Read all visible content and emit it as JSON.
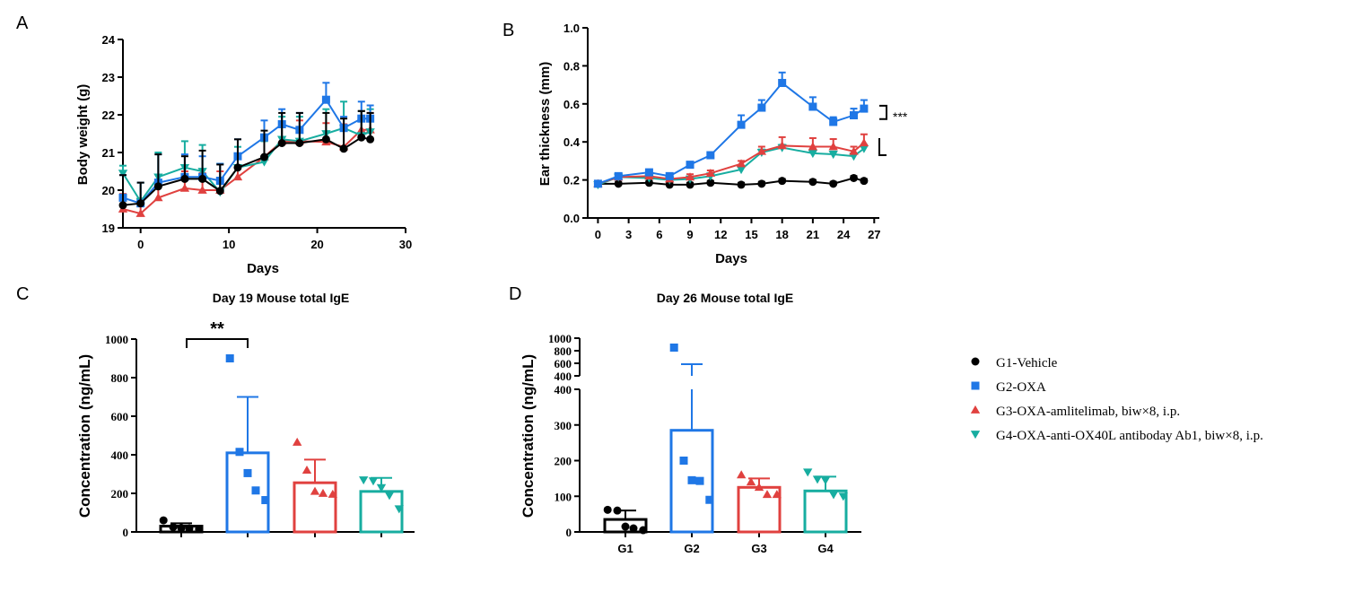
{
  "panels": {
    "a": "A",
    "b": "B",
    "c": "C",
    "d": "D"
  },
  "colors": {
    "G1": "#000000",
    "G2": "#1f77e6",
    "G3": "#e0413f",
    "G4": "#17ada0"
  },
  "legend": [
    {
      "label": "G1-Vehicle",
      "marker": "circle",
      "color": "#000000"
    },
    {
      "label": "G2-OXA",
      "marker": "square",
      "color": "#1f77e6"
    },
    {
      "label": "G3-OXA-amlitelimab, biw×8, i.p.",
      "marker": "triangle-up",
      "color": "#e0413f"
    },
    {
      "label": "G4-OXA-anti-OX40L antiboday Ab1, biw×8, i.p.",
      "marker": "triangle-down",
      "color": "#17ada0"
    }
  ],
  "chart_data": [
    {
      "id": "A",
      "type": "line",
      "title": "",
      "xlabel": "Days",
      "ylabel": "Body weight (g)",
      "xlim": [
        -2,
        30
      ],
      "ylim": [
        19,
        24
      ],
      "xticks": [
        "0",
        "10",
        "20",
        "30"
      ],
      "yticks": [
        "19",
        "20",
        "21",
        "22",
        "23",
        "24"
      ],
      "x": [
        -2,
        0,
        2,
        5,
        7,
        9,
        11,
        14,
        16,
        18,
        21,
        23,
        25,
        26
      ],
      "series": [
        {
          "group": "G1",
          "marker": "circle",
          "values": [
            19.6,
            19.65,
            20.1,
            20.3,
            20.3,
            19.98,
            20.6,
            20.88,
            21.25,
            21.25,
            21.35,
            21.1,
            21.4,
            21.35
          ],
          "err": [
            0.8,
            0.55,
            0.85,
            0.6,
            0.75,
            0.7,
            0.75,
            0.7,
            0.8,
            0.8,
            0.7,
            0.8,
            0.7,
            0.7
          ]
        },
        {
          "group": "G2",
          "marker": "square",
          "values": [
            19.8,
            19.65,
            20.2,
            20.35,
            20.35,
            20.25,
            20.9,
            21.4,
            21.75,
            21.6,
            22.4,
            21.65,
            21.9,
            21.9
          ],
          "err": [
            0.6,
            0.55,
            0.75,
            0.6,
            0.55,
            0.45,
            0.45,
            0.45,
            0.4,
            0.45,
            0.45,
            0.3,
            0.45,
            0.35
          ]
        },
        {
          "group": "G3",
          "marker": "triangle-up",
          "values": [
            19.5,
            19.38,
            19.8,
            20.05,
            20.0,
            20.0,
            20.35,
            20.88,
            21.3,
            21.3,
            21.28,
            21.15,
            21.6,
            21.6
          ],
          "err": [
            0.4,
            0.4,
            0.45,
            0.45,
            0.45,
            0.5,
            0.5,
            0.55,
            0.45,
            0.55,
            0.5,
            0.6,
            0.5,
            0.45
          ]
        },
        {
          "group": "G4",
          "marker": "triangle-down",
          "values": [
            20.45,
            19.7,
            20.35,
            20.6,
            20.5,
            19.95,
            20.6,
            20.75,
            21.35,
            21.3,
            21.5,
            21.65,
            21.45,
            21.55
          ],
          "err": [
            0.2,
            0.5,
            0.65,
            0.7,
            0.7,
            0.75,
            0.55,
            0.55,
            0.6,
            0.65,
            0.65,
            0.7,
            0.65,
            0.6
          ]
        }
      ]
    },
    {
      "id": "B",
      "type": "line",
      "title": "",
      "xlabel": "Days",
      "ylabel": "Ear thickness (mm)",
      "xlim": [
        -1,
        27.5
      ],
      "ylim": [
        0,
        1.0
      ],
      "xticks": [
        "0",
        "3",
        "6",
        "9",
        "12",
        "15",
        "18",
        "21",
        "24",
        "27"
      ],
      "yticks": [
        "0.0",
        "0.2",
        "0.4",
        "0.6",
        "0.8",
        "1.0"
      ],
      "x": [
        0,
        2,
        5,
        7,
        9,
        11,
        14,
        16,
        18,
        21,
        23,
        25,
        26
      ],
      "series": [
        {
          "group": "G1",
          "marker": "circle",
          "values": [
            0.18,
            0.18,
            0.185,
            0.175,
            0.175,
            0.185,
            0.175,
            0.18,
            0.195,
            0.19,
            0.18,
            0.21,
            0.195
          ],
          "err": [
            0.01,
            0.01,
            0.01,
            0.01,
            0.01,
            0.01,
            0.01,
            0.01,
            0.01,
            0.01,
            0.01,
            0.01,
            0.01
          ]
        },
        {
          "group": "G2",
          "marker": "square",
          "values": [
            0.18,
            0.22,
            0.24,
            0.22,
            0.28,
            0.33,
            0.49,
            0.58,
            0.71,
            0.585,
            0.505,
            0.54,
            0.575
          ],
          "err": [
            0.01,
            0.01,
            0.015,
            0.015,
            0.015,
            0.015,
            0.05,
            0.04,
            0.055,
            0.05,
            0.025,
            0.035,
            0.045
          ]
        },
        {
          "group": "G3",
          "marker": "triangle-up",
          "values": [
            0.18,
            0.215,
            0.22,
            0.205,
            0.215,
            0.235,
            0.285,
            0.35,
            0.38,
            0.375,
            0.375,
            0.35,
            0.395
          ],
          "err": [
            0.01,
            0.01,
            0.01,
            0.01,
            0.015,
            0.015,
            0.015,
            0.025,
            0.045,
            0.045,
            0.04,
            0.025,
            0.045
          ]
        },
        {
          "group": "G4",
          "marker": "triangle-down",
          "values": [
            0.175,
            0.215,
            0.21,
            0.2,
            0.205,
            0.22,
            0.255,
            0.345,
            0.37,
            0.34,
            0.335,
            0.325,
            0.365
          ],
          "err": [
            0.01,
            0.01,
            0.01,
            0.01,
            0.01,
            0.015,
            0.015,
            0.015,
            0.015,
            0.015,
            0.015,
            0.015,
            0.02
          ]
        }
      ],
      "annotation": {
        "text": "***",
        "between": [
          "G2",
          "G3"
        ]
      }
    },
    {
      "id": "C",
      "type": "bar",
      "title": "Day 19 Mouse total IgE",
      "xlabel": "",
      "ylabel": "Concentration (ng/mL)",
      "ylim": [
        0,
        1000
      ],
      "yticks": [
        "0",
        "200",
        "400",
        "600",
        "800",
        "1000"
      ],
      "categories": [
        "G1",
        "G2",
        "G3",
        "G4"
      ],
      "category_labels_visible": false,
      "values": [
        30,
        410,
        255,
        210
      ],
      "err": [
        15,
        290,
        120,
        70
      ],
      "points": [
        [
          60,
          25,
          20,
          18,
          15
        ],
        [
          900,
          415,
          305,
          215,
          165
        ],
        [
          465,
          320,
          210,
          200,
          195
        ],
        [
          270,
          265,
          230,
          190,
          120
        ]
      ],
      "annotation": {
        "text": "**",
        "between": [
          "G1",
          "G2"
        ]
      }
    },
    {
      "id": "D",
      "type": "bar",
      "title": "Day 26 Mouse total IgE",
      "xlabel": "",
      "ylabel": "Concentration (ng/mL)",
      "axis_break": true,
      "ylim_lower": [
        0,
        400
      ],
      "ylim_upper": [
        400,
        1000
      ],
      "yticks_lower": [
        "0",
        "100",
        "200",
        "300",
        "400"
      ],
      "yticks_upper": [
        "400",
        "600",
        "800",
        "1000"
      ],
      "categories": [
        "G1",
        "G2",
        "G3",
        "G4"
      ],
      "values": [
        35,
        285,
        125,
        115
      ],
      "err": [
        25,
        300,
        25,
        40
      ],
      "points": [
        [
          62,
          60,
          15,
          10,
          5
        ],
        [
          850,
          200,
          145,
          143,
          90
        ],
        [
          160,
          140,
          125,
          105,
          105
        ],
        [
          168,
          148,
          145,
          105,
          100
        ]
      ]
    }
  ]
}
